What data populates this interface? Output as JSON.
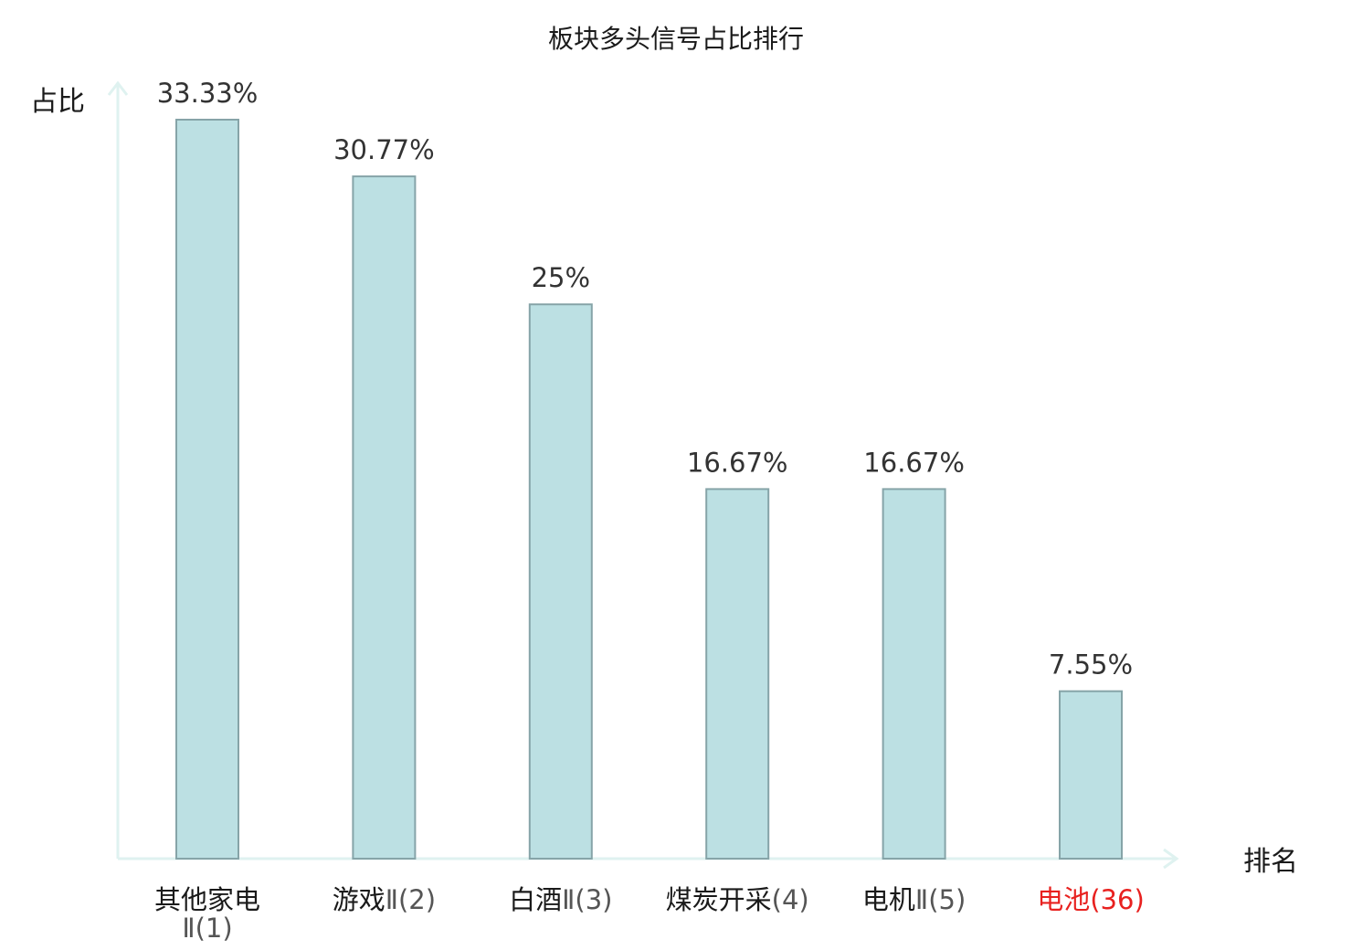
{
  "chart_data": {
    "type": "bar",
    "title": "板块多头信号占比排行",
    "ylabel": "占比",
    "xlabel": "排名",
    "categories": [
      {
        "name": "其他家电",
        "rank": "Ⅱ(1)",
        "highlight": false
      },
      {
        "name": "游戏",
        "rank": "Ⅱ(2)",
        "highlight": false
      },
      {
        "name": "白酒",
        "rank": "Ⅱ(3)",
        "highlight": false
      },
      {
        "name": "煤炭开采",
        "rank": "(4)",
        "highlight": false
      },
      {
        "name": "电机",
        "rank": "Ⅱ(5)",
        "highlight": false
      },
      {
        "name": "电池",
        "rank": "(36)",
        "highlight": true
      }
    ],
    "values": [
      33.33,
      30.77,
      25,
      16.67,
      16.67,
      7.55
    ],
    "value_labels": [
      "33.33%",
      "30.77%",
      "25%",
      "16.67%",
      "16.67%",
      "7.55%"
    ],
    "ylim": [
      0,
      33.33
    ],
    "grid": false,
    "colors": {
      "bar_fill": "#bce0e3",
      "bar_stroke": "#86a4a8",
      "axis": "#dff2f0",
      "text": "#1a1a1a",
      "highlight": "#e8211f"
    }
  }
}
